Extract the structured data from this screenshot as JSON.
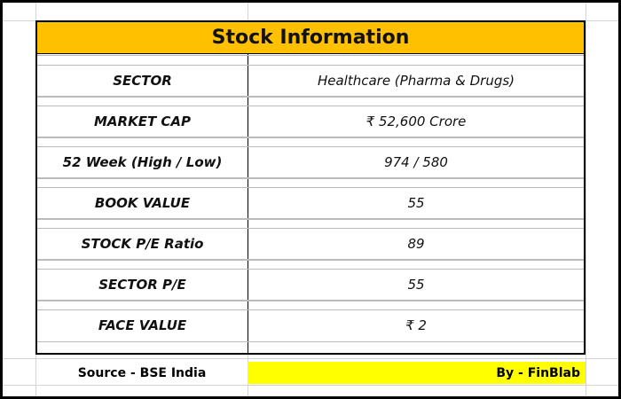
{
  "title": "Stock Information",
  "rows": [
    [
      "SECTOR",
      "Healthcare (Pharma & Drugs)"
    ],
    [
      "MARKET CAP",
      "₹ 52,600 Crore"
    ],
    [
      "52 Week (High / Low)",
      "974 / 580"
    ],
    [
      "BOOK VALUE",
      "55"
    ],
    [
      "STOCK P/E Ratio",
      "89"
    ],
    [
      "SECTOR P/E",
      "55"
    ],
    [
      "FACE VALUE",
      "₹ 2"
    ]
  ],
  "footer": {
    "source": "Source - BSE India",
    "credit": "By - FinBlab"
  }
}
